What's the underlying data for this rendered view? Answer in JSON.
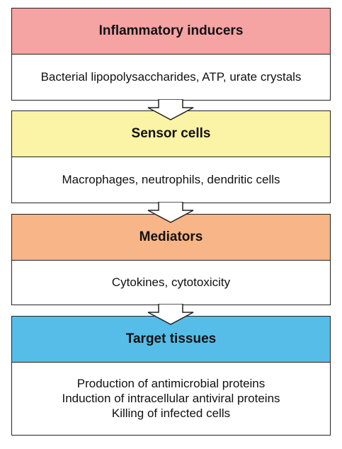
{
  "colors": {
    "inducers": "#f5a3a3",
    "sensors": "#fbf3a5",
    "mediators": "#f8b587",
    "targets": "#56bde9",
    "border": "#222222"
  },
  "stages": [
    {
      "title": "Inflammatory inducers",
      "lines": [
        "Bacterial lipopolysaccharides, ATP, urate crystals"
      ]
    },
    {
      "title": "Sensor cells",
      "lines": [
        "Macrophages, neutrophils, dendritic cells"
      ]
    },
    {
      "title": "Mediators",
      "lines": [
        "Cytokines, cytotoxicity"
      ]
    },
    {
      "title": "Target tissues",
      "lines": [
        "Production of antimicrobial proteins",
        "Induction of intracellular antiviral proteins",
        "Killing of infected cells"
      ]
    }
  ],
  "connectors": [
    "down-arrow-icon",
    "down-arrow-icon",
    "down-arrow-icon"
  ]
}
